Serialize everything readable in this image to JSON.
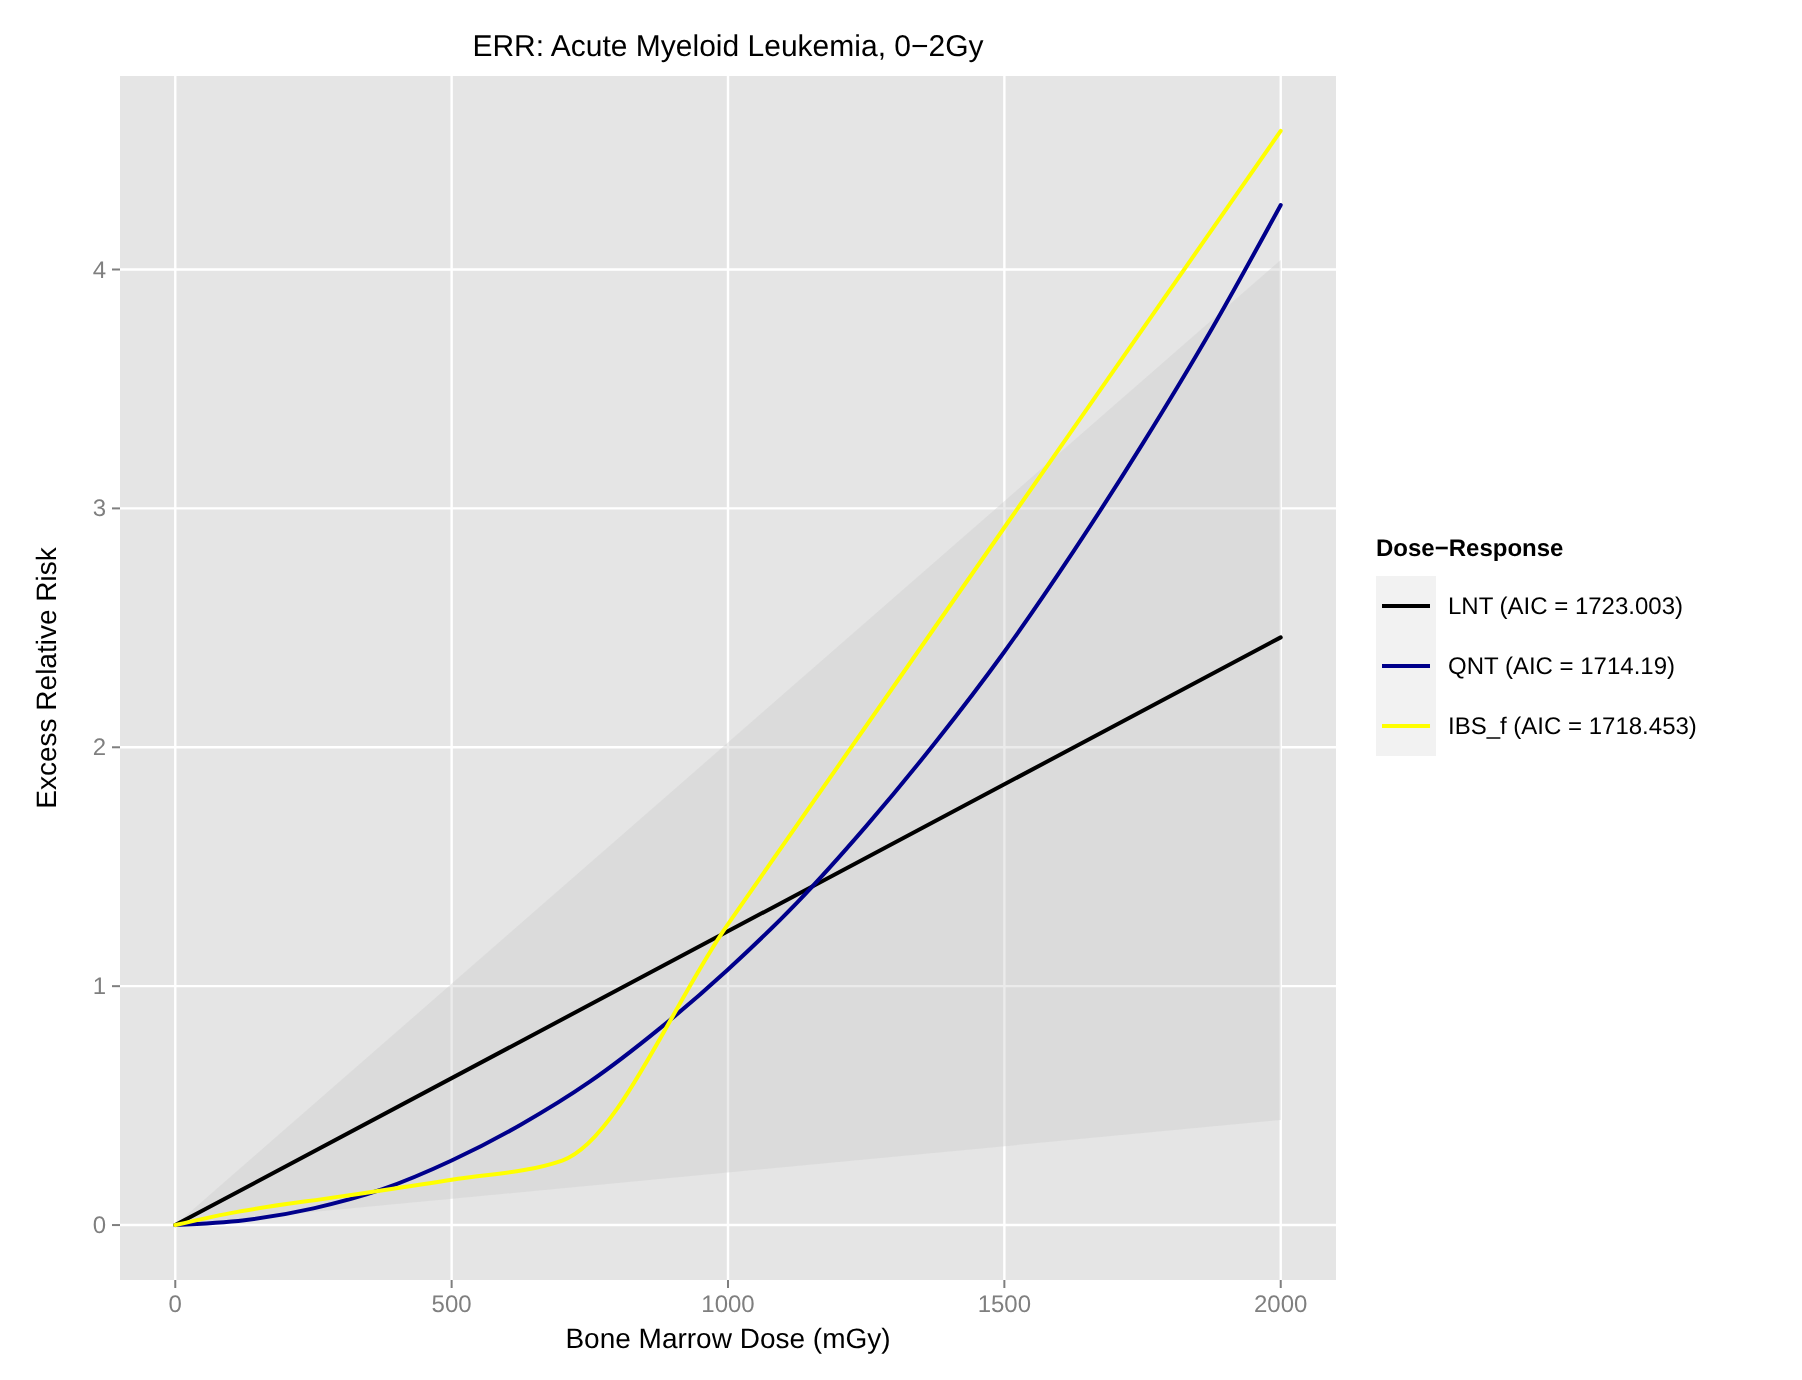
{
  "chart_data": {
    "type": "line",
    "title": "ERR: Acute Myeloid Leukemia, 0−2Gy",
    "xlabel": "Bone Marrow Dose (mGy)",
    "ylabel": "Excess Relative Risk",
    "legend_title": "Dose−Response",
    "xlim": [
      -100,
      2100
    ],
    "ylim": [
      -0.23,
      4.81
    ],
    "xticks": [
      0,
      500,
      1000,
      1500,
      2000
    ],
    "yticks": [
      0,
      1,
      2,
      3,
      4
    ],
    "grid": true,
    "legend": "right",
    "line_style": "solid",
    "series": [
      {
        "name": "LNT (AIC = 1723.003)",
        "color": "#000000",
        "x": [
          0,
          2000
        ],
        "values": [
          0,
          2.46
        ],
        "lower": [
          0,
          0.44
        ],
        "upper": [
          0,
          4.04
        ]
      },
      {
        "name": "QNT (AIC = 1714.19)",
        "color": "#00008b",
        "x": [
          0,
          125,
          250,
          375,
          500,
          625,
          750,
          875,
          1000,
          1125,
          1250,
          1375,
          1500,
          1625,
          1750,
          1875,
          2000
        ],
        "values": [
          0,
          0.02,
          0.07,
          0.15,
          0.27,
          0.42,
          0.6,
          0.82,
          1.07,
          1.35,
          1.67,
          2.02,
          2.4,
          2.82,
          3.27,
          3.75,
          4.27
        ]
      },
      {
        "name": "IBS_f (AIC = 1718.453)",
        "color": "#ffff00",
        "x": [
          0,
          100,
          300,
          500,
          700,
          1000,
          1500,
          2000
        ],
        "values": [
          0,
          0.05,
          0.12,
          0.19,
          0.27,
          1.26,
          2.92,
          4.58
        ]
      }
    ]
  }
}
